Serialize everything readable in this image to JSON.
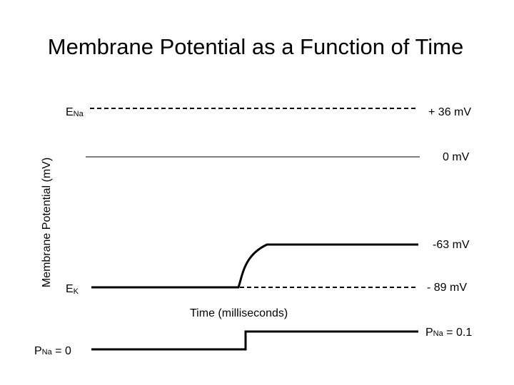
{
  "slide_title": "Membrane Potential as a Function of Time",
  "chart_data": {
    "type": "line",
    "title": "Membrane Potential as a Function of Time",
    "xlabel": "Time (milliseconds)",
    "ylabel": "Membrane Potential (mV)",
    "reference_lines": [
      {
        "label_main": "E",
        "label_sub": "Na",
        "value_label": "+ 36 mV",
        "value": 36,
        "style": "dashed"
      },
      {
        "value_label": "0 mV",
        "value": 0,
        "style": "solid-thin"
      },
      {
        "label_main": "E",
        "label_sub": "K",
        "value_label": "- 89 mV",
        "value": -89,
        "style": "dashed"
      }
    ],
    "series": [
      {
        "values": [
          -89,
          -89,
          -63,
          -63
        ],
        "end_label": "-63 mV"
      }
    ],
    "permeability_trace": {
      "start_label_main": "P",
      "start_label_sub": "Na",
      "start_label_value": " = 0",
      "end_label_main": "P",
      "end_label_sub": "Na",
      "end_label_value": " = 0.1",
      "values": [
        0,
        0.1
      ]
    }
  }
}
